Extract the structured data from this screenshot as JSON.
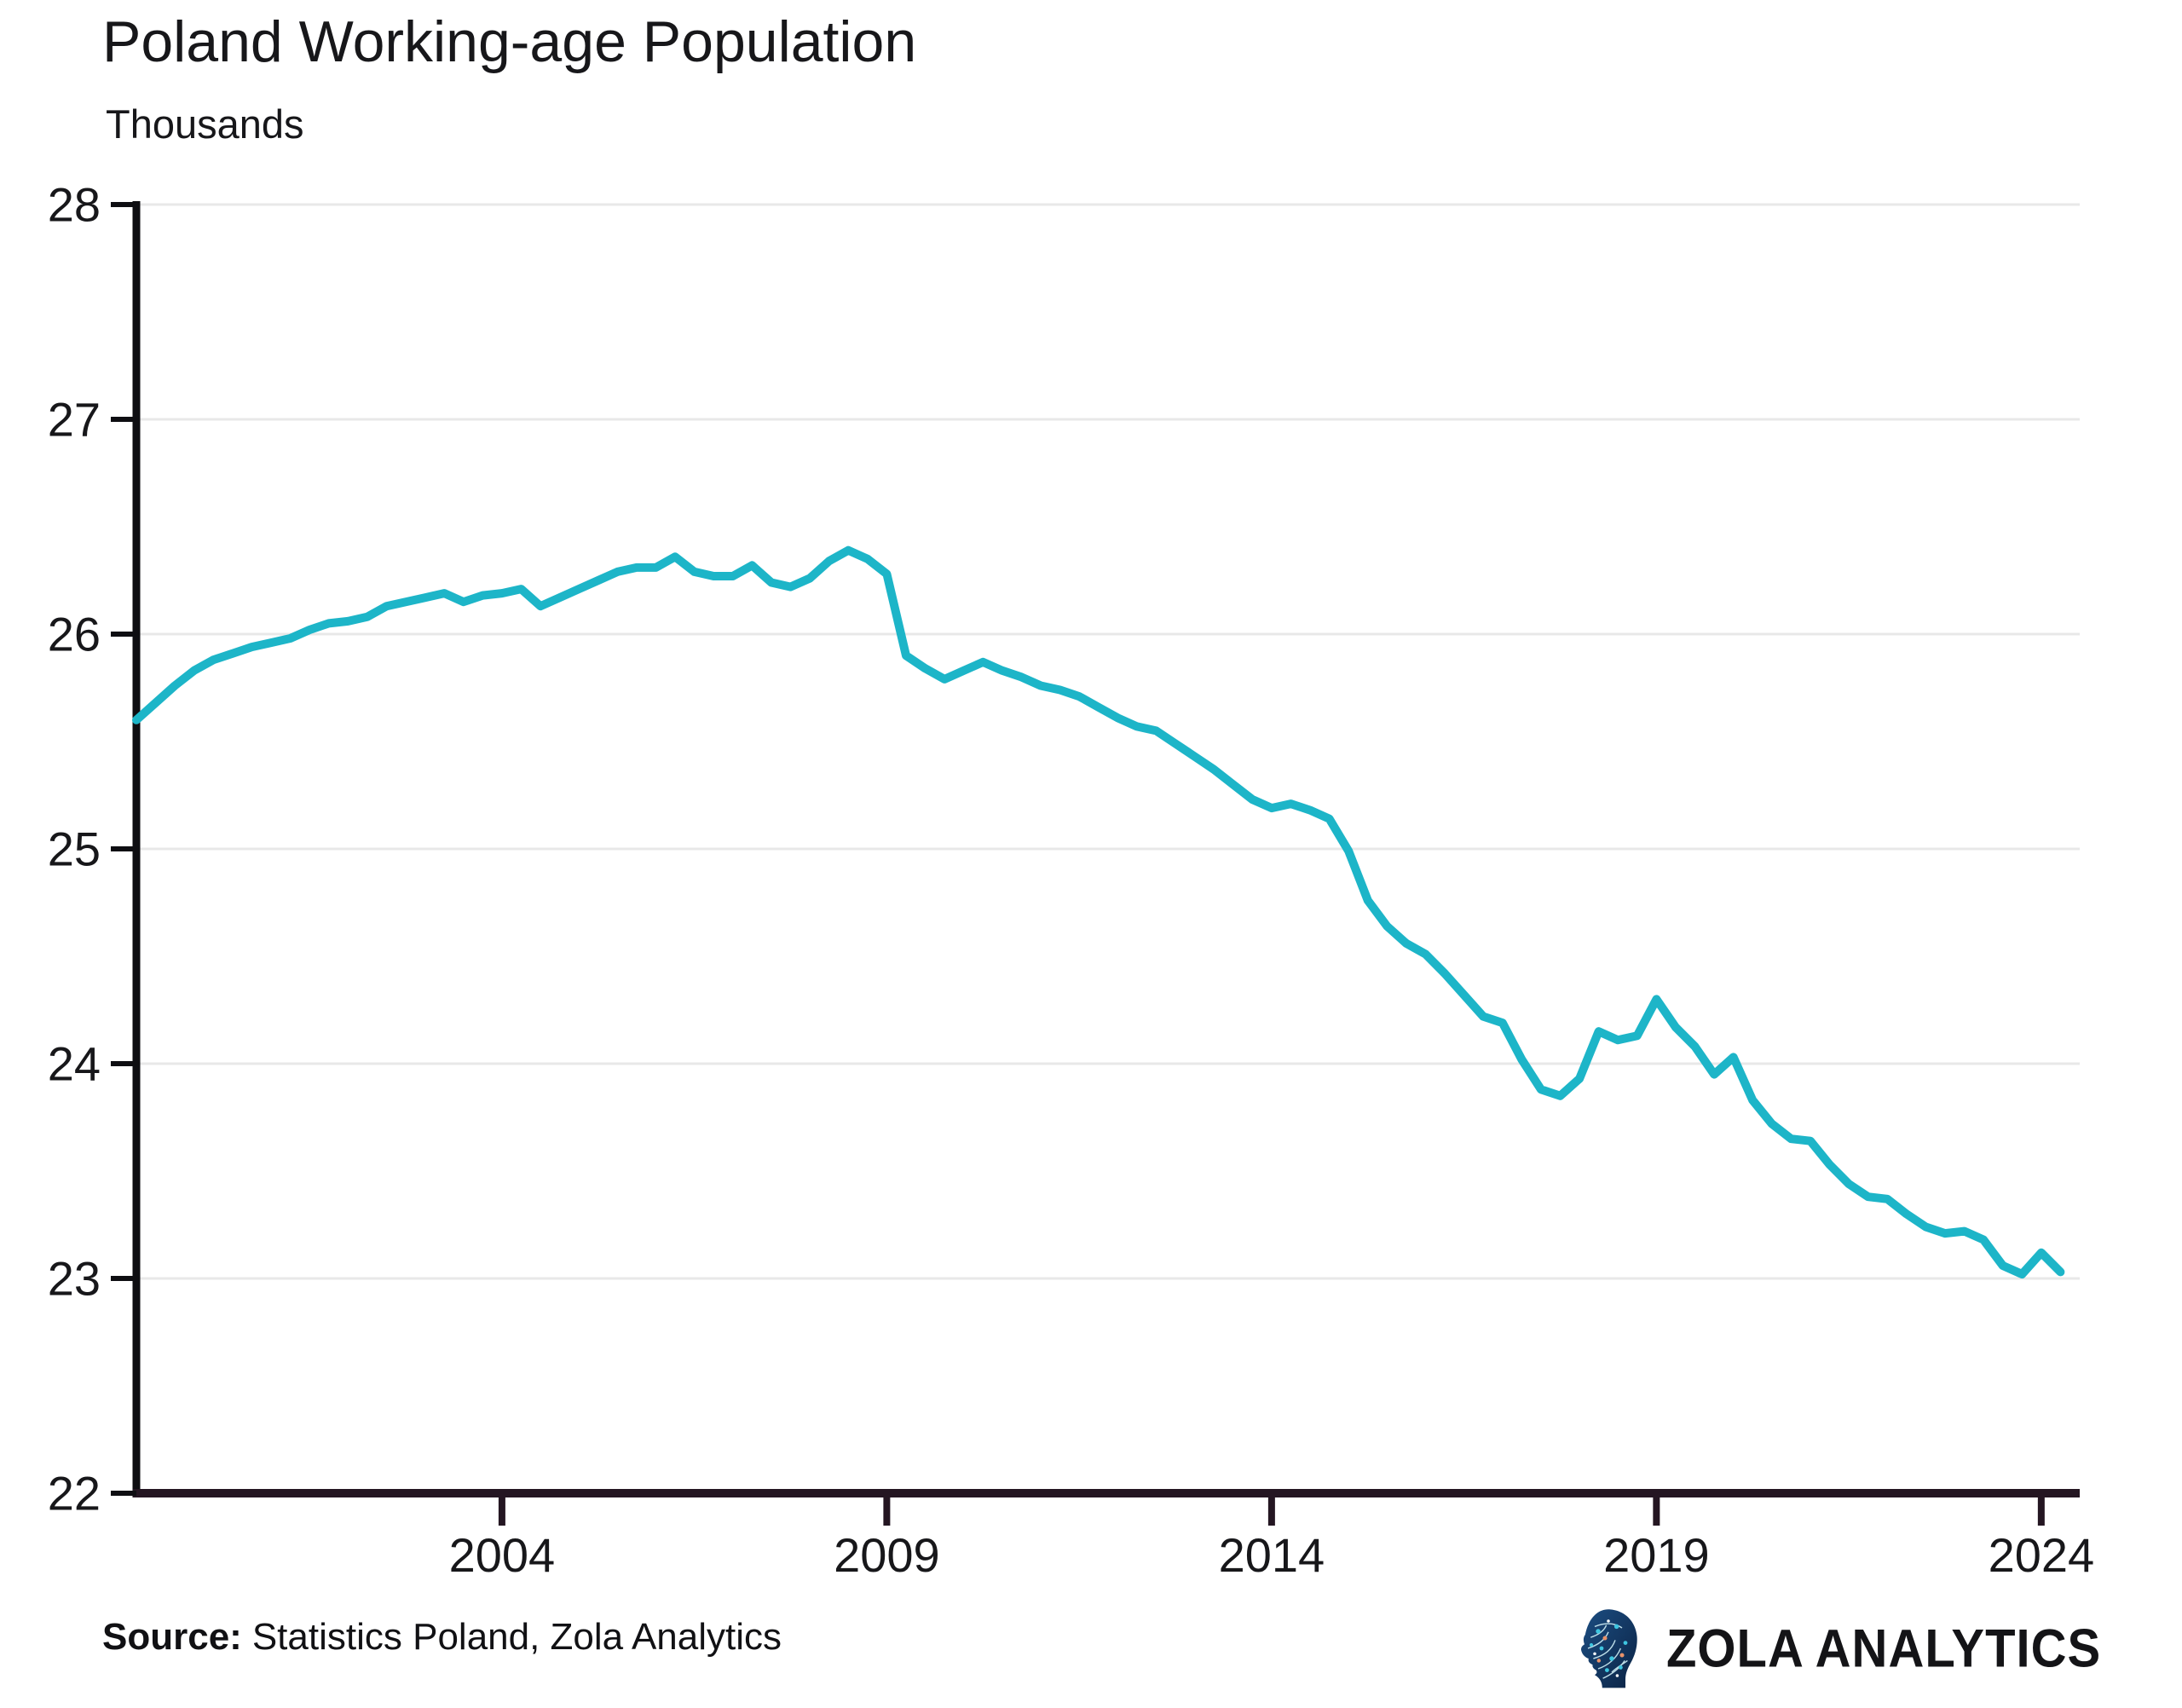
{
  "header": {
    "title": "Poland Working-age Population",
    "subtitle": "Thousands"
  },
  "chart_data": {
    "type": "line",
    "title": "Poland Working-age Population",
    "ylabel": "Thousands",
    "series_name": "Poland working-age population (thousands)",
    "x_unit": "year (quarterly)",
    "xlim": [
      1999.25,
      2024.5
    ],
    "ylim": [
      22,
      28
    ],
    "y_ticks": [
      22,
      23,
      24,
      25,
      26,
      27,
      28
    ],
    "x_ticks": [
      2004,
      2009,
      2014,
      2019,
      2024
    ],
    "grid": "horizontal",
    "legend": "none",
    "x": [
      1999.25,
      1999.5,
      1999.75,
      2000.0,
      2000.25,
      2000.5,
      2000.75,
      2001.0,
      2001.25,
      2001.5,
      2001.75,
      2002.0,
      2002.25,
      2002.5,
      2002.75,
      2003.0,
      2003.25,
      2003.5,
      2003.75,
      2004.0,
      2004.25,
      2004.5,
      2004.75,
      2005.0,
      2005.25,
      2005.5,
      2005.75,
      2006.0,
      2006.25,
      2006.5,
      2006.75,
      2007.0,
      2007.25,
      2007.5,
      2007.75,
      2008.0,
      2008.25,
      2008.5,
      2008.75,
      2009.0,
      2009.25,
      2009.5,
      2009.75,
      2010.0,
      2010.25,
      2010.5,
      2010.75,
      2011.0,
      2011.25,
      2011.5,
      2011.75,
      2012.0,
      2012.25,
      2012.5,
      2012.75,
      2013.0,
      2013.25,
      2013.5,
      2013.75,
      2014.0,
      2014.25,
      2014.5,
      2014.75,
      2015.0,
      2015.25,
      2015.5,
      2015.75,
      2016.0,
      2016.25,
      2016.5,
      2016.75,
      2017.0,
      2017.25,
      2017.5,
      2017.75,
      2018.0,
      2018.25,
      2018.5,
      2018.75,
      2019.0,
      2019.25,
      2019.5,
      2019.75,
      2020.0,
      2020.25,
      2020.5,
      2020.75,
      2021.0,
      2021.25,
      2021.5,
      2021.75,
      2022.0,
      2022.25,
      2022.5,
      2022.75,
      2023.0,
      2023.25,
      2023.5,
      2023.75,
      2024.0,
      2024.25
    ],
    "values": [
      25.6,
      25.68,
      25.76,
      25.83,
      25.88,
      25.91,
      25.94,
      25.96,
      25.98,
      26.02,
      26.05,
      26.06,
      26.08,
      26.13,
      26.15,
      26.17,
      26.19,
      26.15,
      26.18,
      26.19,
      26.21,
      26.13,
      26.17,
      26.21,
      26.25,
      26.29,
      26.31,
      26.31,
      26.36,
      26.29,
      26.27,
      26.27,
      26.32,
      26.24,
      26.22,
      26.26,
      26.34,
      26.39,
      26.35,
      26.28,
      25.9,
      25.84,
      25.79,
      25.83,
      25.87,
      25.83,
      25.8,
      25.76,
      25.74,
      25.71,
      25.66,
      25.61,
      25.57,
      25.55,
      25.49,
      25.43,
      25.37,
      25.3,
      25.23,
      25.19,
      25.21,
      25.18,
      25.14,
      24.99,
      24.76,
      24.64,
      24.56,
      24.51,
      24.42,
      24.32,
      24.22,
      24.19,
      24.02,
      23.88,
      23.85,
      23.93,
      24.15,
      24.11,
      24.13,
      24.3,
      24.17,
      24.08,
      23.95,
      24.03,
      23.83,
      23.72,
      23.65,
      23.64,
      23.53,
      23.44,
      23.38,
      23.37,
      23.3,
      23.24,
      23.21,
      23.22,
      23.18,
      23.06,
      23.02,
      23.12,
      23.03
    ],
    "line_color": "#1db5c8",
    "grid_color": "#e8e8e8",
    "y_axis_color": "#0e0e12",
    "x_axis_color": "#241622",
    "label_color": "#17171a"
  },
  "footer": {
    "source_label": "Source:",
    "source_text": "Statistics Poland, Zola Analytics",
    "logo_text": "ZOLA ANALYTICS"
  }
}
